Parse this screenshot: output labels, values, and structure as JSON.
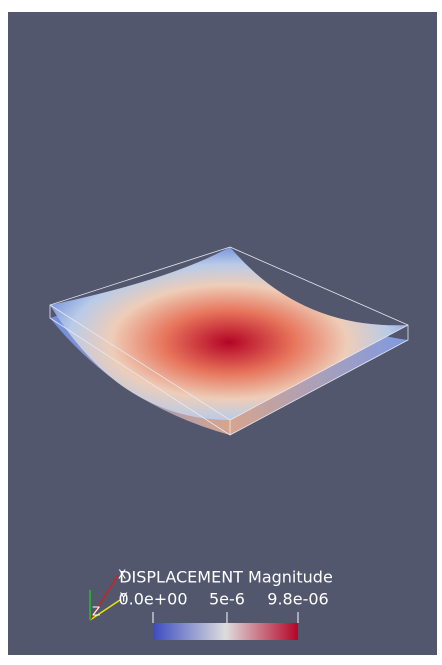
{
  "legend": {
    "title": "DISPLACEMENT Magnitude",
    "range": [
      0,
      9.8e-06
    ],
    "ticks": [
      {
        "value": 0,
        "label": "0.0e+00"
      },
      {
        "value": 5e-06,
        "label": "5e-6"
      },
      {
        "value": 9.8e-06,
        "label": "9.8e-06"
      }
    ]
  },
  "axes": {
    "x": "X",
    "y": "Y",
    "z": "Z"
  }
}
